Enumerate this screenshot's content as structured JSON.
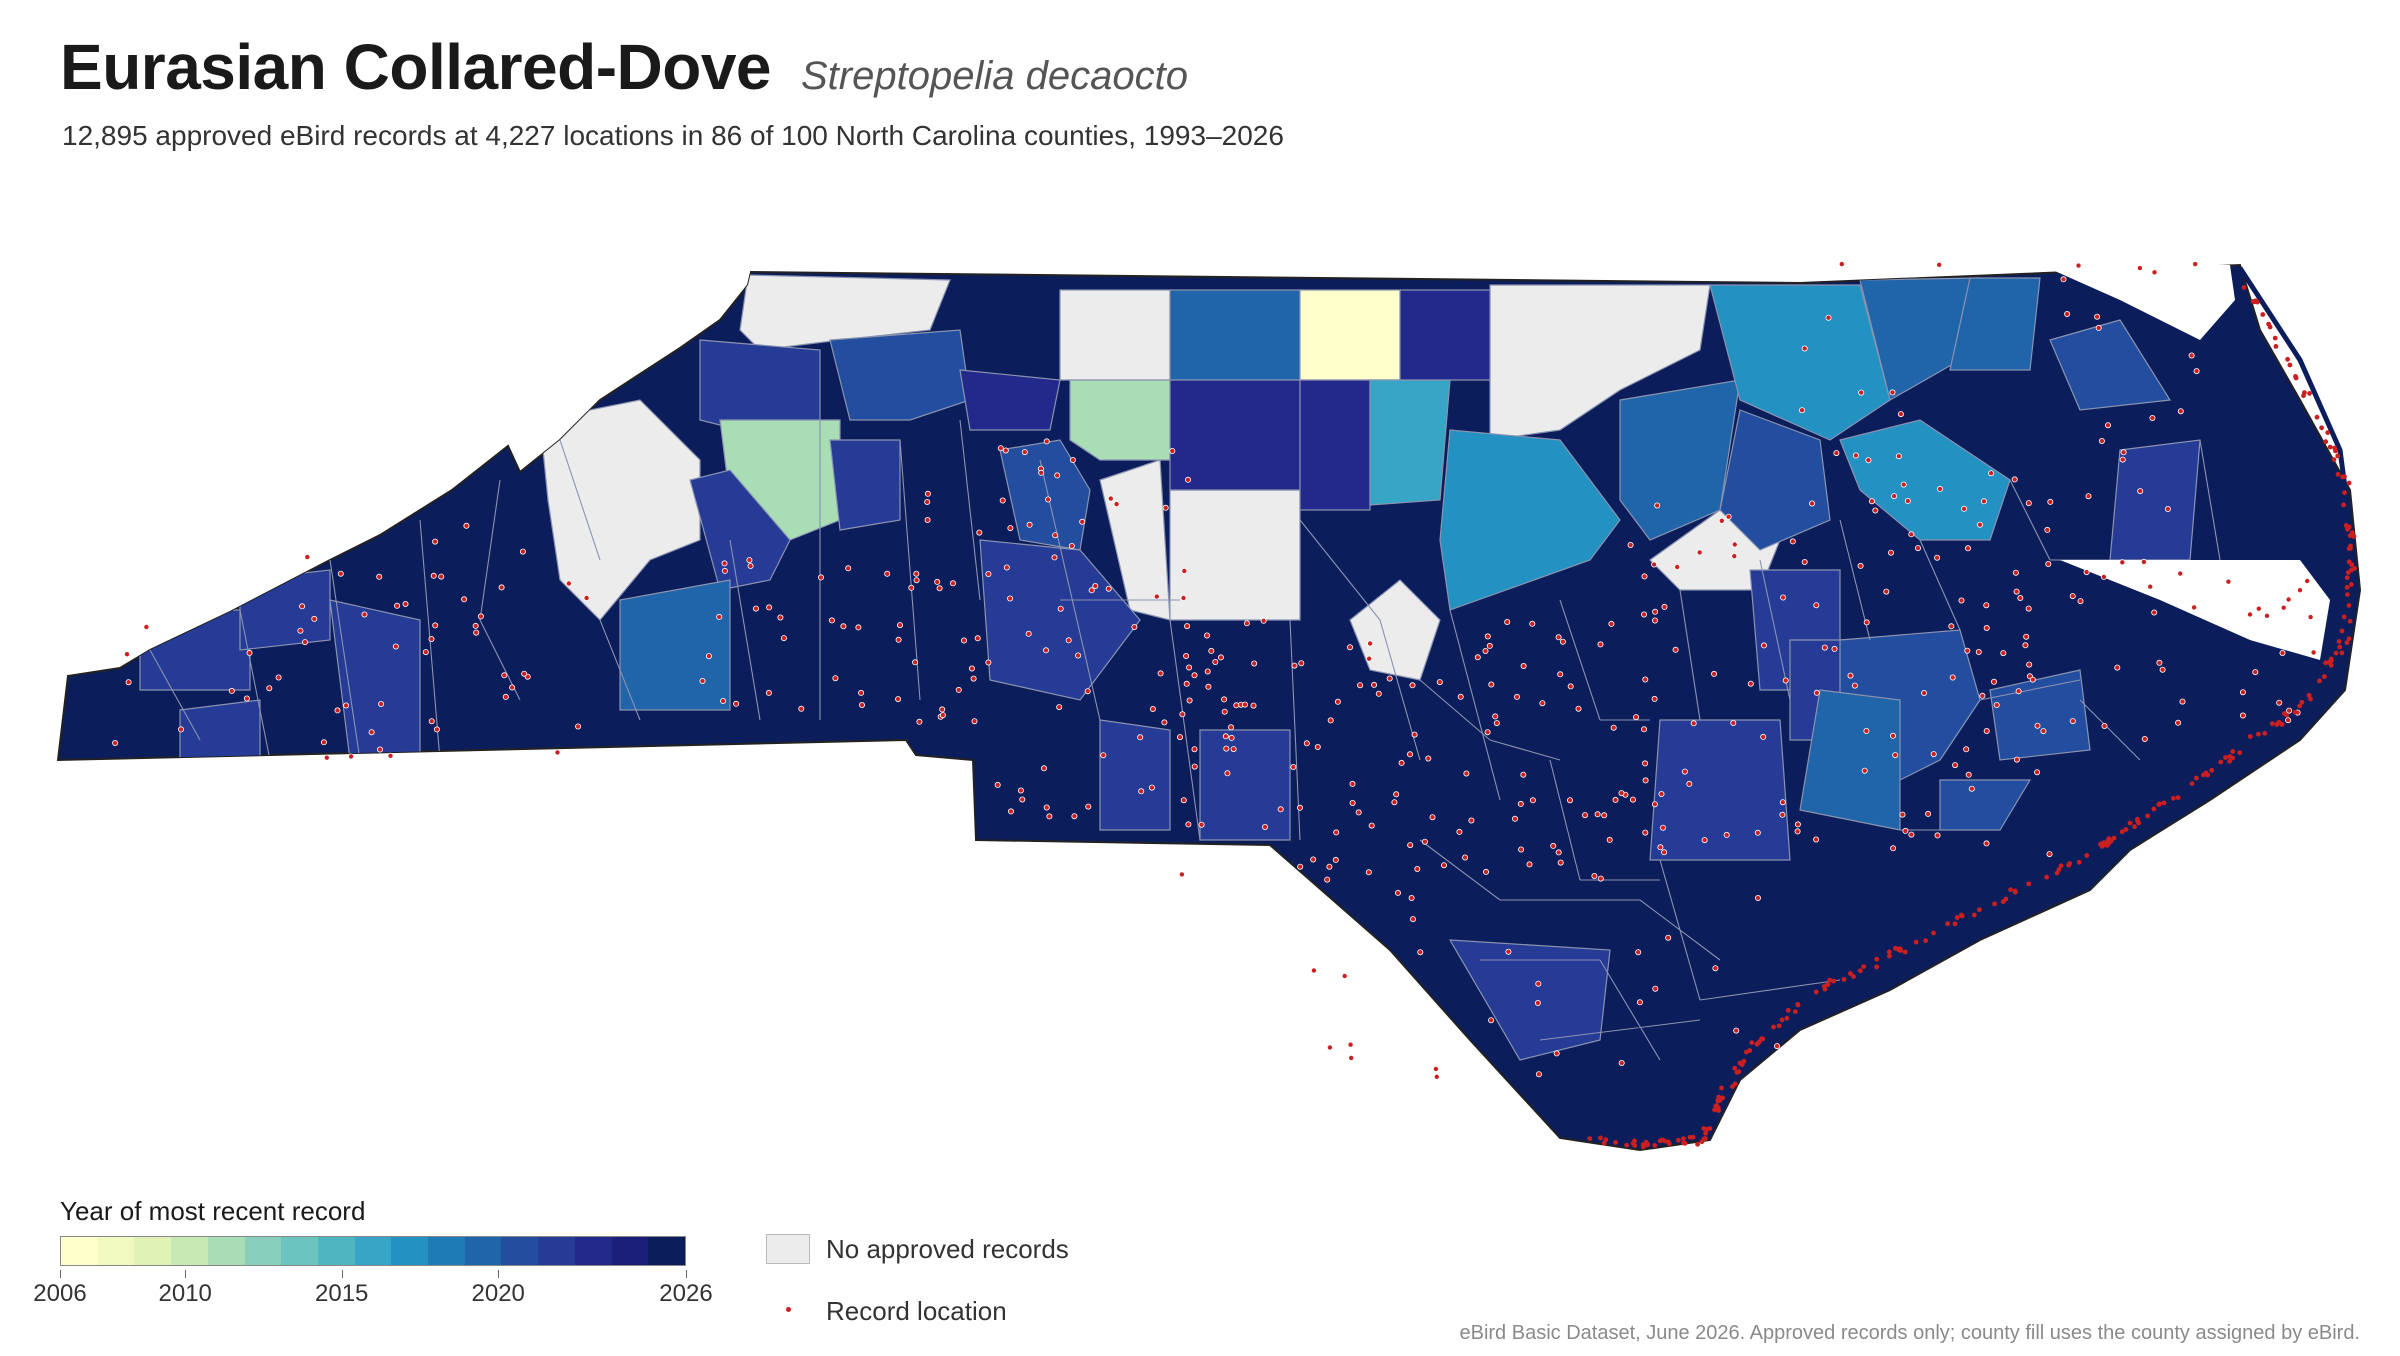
{
  "header": {
    "title": "Eurasian Collared-Dove",
    "scientific_name": "Streptopelia decaocto",
    "subtitle": "12,895 approved eBird records at 4,227 locations in 86 of 100 North Carolina counties, 1993–2026"
  },
  "legend": {
    "title": "Year of most recent record",
    "ramp_colors": [
      "#ffffcc",
      "#f1f9bf",
      "#e0f2b6",
      "#c7e9b4",
      "#a8ddb5",
      "#88d0bb",
      "#6bc4be",
      "#4eb6c1",
      "#36a5c6",
      "#2391c1",
      "#1f7bb6",
      "#2064aa",
      "#234ea0",
      "#253b95",
      "#23298a",
      "#1b1f7a",
      "#0c1d5c"
    ],
    "ticks": [
      "2006",
      "2010",
      "2015",
      "2020",
      "2026"
    ],
    "no_records_label": "No approved records",
    "no_records_color": "#ececec",
    "record_location_label": "Record location",
    "record_color": "#cc1f1f"
  },
  "source_note": "eBird Basic Dataset, June 2026. Approved records only; county fill uses the county assigned by eBird."
}
